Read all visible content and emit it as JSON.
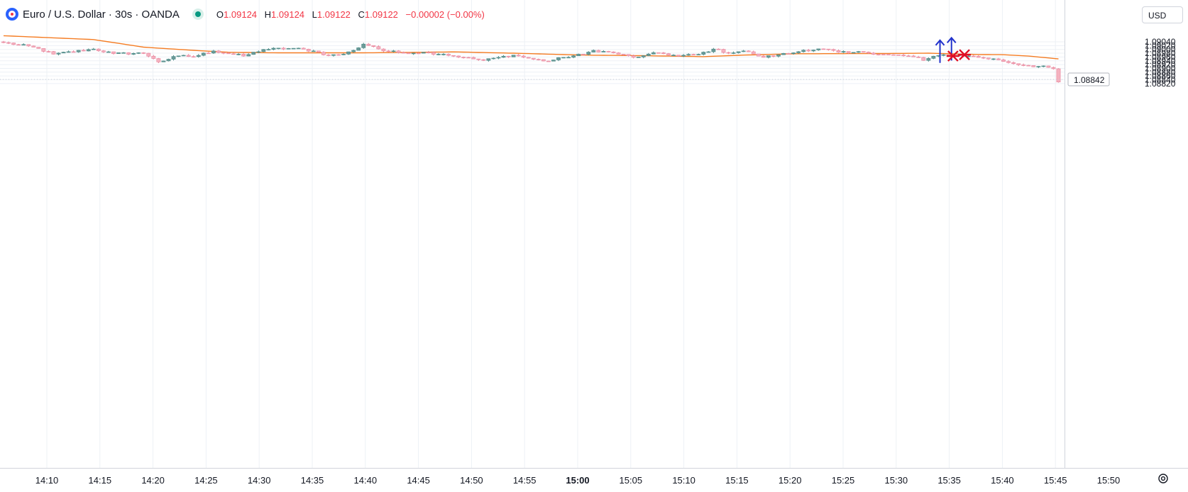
{
  "header": {
    "symbol": "Euro / U.S. Dollar · 30s · OANDA",
    "open_label": "O",
    "open": "1.09124",
    "high_label": "H",
    "high": "1.09124",
    "low_label": "L",
    "low": "1.09122",
    "close_label": "C",
    "close": "1.09122",
    "change": "−0.00002 (−0.00%)"
  },
  "currency_button": "USD",
  "last_price_label": "1.08842",
  "icons": {
    "logo": "tradingview-logo-icon",
    "market": "market-open-dot-icon",
    "settings": "gear-icon"
  },
  "colors": {
    "up": "#6c9a98",
    "down": "#f4b2c0",
    "ma": "#f57c22",
    "buy_marker": "#2233cc",
    "sell_marker": "#e01025",
    "grid": "#edf1f6"
  },
  "chart_data": {
    "type": "candlestick",
    "title": "Euro / U.S. Dollar · 30s · OANDA",
    "y_axis": {
      "min": 1.0881,
      "max": 1.0906,
      "ticks": [
        "1.09040",
        "1.09020",
        "1.09000",
        "1.08980",
        "1.08960",
        "1.08940",
        "1.08920",
        "1.08900",
        "1.08880",
        "1.08860",
        "1.08840",
        "1.08820"
      ]
    },
    "x_axis": {
      "ticks": [
        "14:10",
        "14:15",
        "14:20",
        "14:25",
        "14:30",
        "14:35",
        "14:40",
        "14:45",
        "14:50",
        "14:55",
        "15:00",
        "15:05",
        "15:10",
        "15:15",
        "15:20",
        "15:25",
        "15:30",
        "15:35",
        "15:40",
        "15:45",
        "15:50"
      ],
      "bold": "15:00"
    },
    "grid": true,
    "anchors": [
      [
        0,
        1.09036
      ],
      [
        6,
        1.09012
      ],
      [
        10,
        1.08975
      ],
      [
        18,
        1.09002
      ],
      [
        22,
        1.08978
      ],
      [
        28,
        1.0898
      ],
      [
        30,
        1.08952
      ],
      [
        31,
        1.08934
      ],
      [
        35,
        1.08966
      ],
      [
        38,
        1.08962
      ],
      [
        42,
        1.08992
      ],
      [
        48,
        1.08965
      ],
      [
        52,
        1.09
      ],
      [
        58,
        1.09006
      ],
      [
        62,
        1.08992
      ],
      [
        65,
        1.08968
      ],
      [
        68,
        1.08975
      ],
      [
        70,
        1.08995
      ],
      [
        72,
        1.09028
      ],
      [
        74,
        1.09015
      ],
      [
        76,
        1.08992
      ],
      [
        80,
        1.08982
      ],
      [
        84,
        1.08985
      ],
      [
        88,
        1.08975
      ],
      [
        92,
        1.08958
      ],
      [
        96,
        1.08942
      ],
      [
        99,
        1.08958
      ],
      [
        102,
        1.0897
      ],
      [
        106,
        1.08948
      ],
      [
        109,
        1.08938
      ],
      [
        112,
        1.08958
      ],
      [
        116,
        1.08974
      ],
      [
        118,
        1.08995
      ],
      [
        122,
        1.08982
      ],
      [
        126,
        1.08958
      ],
      [
        128,
        1.08967
      ],
      [
        131,
        1.08982
      ],
      [
        135,
        1.08965
      ],
      [
        139,
        1.08974
      ],
      [
        142,
        1.09002
      ],
      [
        145,
        1.08982
      ],
      [
        148,
        1.08992
      ],
      [
        150,
        1.08976
      ],
      [
        152,
        1.08958
      ],
      [
        155,
        1.08972
      ],
      [
        158,
        1.08982
      ],
      [
        160,
        1.08996
      ],
      [
        164,
        1.09002
      ],
      [
        167,
        1.08985
      ],
      [
        169,
        1.08982
      ],
      [
        172,
        1.08986
      ],
      [
        176,
        1.08974
      ],
      [
        180,
        1.08966
      ],
      [
        183,
        1.08958
      ],
      [
        184,
        1.08942
      ],
      [
        187,
        1.08968
      ],
      [
        189,
        1.08972
      ],
      [
        193,
        1.08965
      ],
      [
        196,
        1.08955
      ],
      [
        199,
        1.08945
      ],
      [
        202,
        1.08925
      ],
      [
        205,
        1.08915
      ],
      [
        209,
        1.08905
      ],
      [
        210,
        1.08898
      ],
      [
        211,
        1.08828
      ]
    ],
    "ma": [
      [
        0,
        1.09072
      ],
      [
        18,
        1.09052
      ],
      [
        28,
        1.09012
      ],
      [
        38,
        1.08995
      ],
      [
        45,
        1.08985
      ],
      [
        55,
        1.08982
      ],
      [
        72,
        1.08982
      ],
      [
        84,
        1.08985
      ],
      [
        90,
        1.08987
      ],
      [
        102,
        1.0898
      ],
      [
        116,
        1.0897
      ],
      [
        128,
        1.08967
      ],
      [
        140,
        1.08962
      ],
      [
        148,
        1.0897
      ],
      [
        158,
        1.08977
      ],
      [
        172,
        1.08978
      ],
      [
        185,
        1.0898
      ],
      [
        195,
        1.08973
      ],
      [
        200,
        1.08972
      ],
      [
        205,
        1.08965
      ],
      [
        211,
        1.0895
      ]
    ],
    "markers": [
      {
        "type": "buy",
        "index": 187.3,
        "price": 1.08966
      },
      {
        "type": "buy",
        "index": 189.6,
        "price": 1.08979
      },
      {
        "type": "sell",
        "index": 189.9,
        "price": 1.08965
      },
      {
        "type": "sell",
        "index": 192.2,
        "price": 1.08972
      }
    ]
  }
}
